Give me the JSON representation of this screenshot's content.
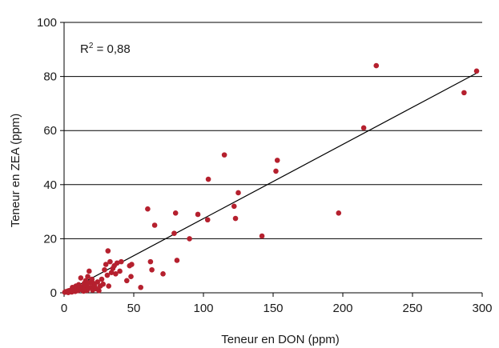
{
  "chart_data": {
    "type": "scatter",
    "title": "",
    "xlabel": "Teneur en DON (ppm)",
    "ylabel": "Teneur en ZEA (ppm)",
    "xlim": [
      0,
      300
    ],
    "ylim": [
      0,
      100
    ],
    "x_ticks": [
      "0",
      "50",
      "100",
      "150",
      "200",
      "250",
      "300"
    ],
    "y_ticks": [
      "0",
      "20",
      "40",
      "60",
      "80",
      "100"
    ],
    "grid": "horizontal",
    "annotation": {
      "r2_base": "R",
      "r2_sup": "2",
      "r2_rest": " = 0,88"
    },
    "colors": {
      "point": "#b5202e",
      "trendline": "#000000",
      "gridline": "#000000"
    },
    "trendline": {
      "x": [
        0,
        297
      ],
      "y": [
        0,
        81.5
      ]
    },
    "series": [
      {
        "values": [
          [
            0.5,
            0.2
          ],
          [
            1,
            0.4
          ],
          [
            2,
            0.3
          ],
          [
            2.5,
            0.6
          ],
          [
            3,
            0.1
          ],
          [
            3.5,
            0.8
          ],
          [
            4,
            0.5
          ],
          [
            5,
            1.0
          ],
          [
            5.5,
            0.3
          ],
          [
            6,
            2.0
          ],
          [
            6.5,
            0.7
          ],
          [
            7,
            1.3
          ],
          [
            8,
            0.5
          ],
          [
            8.5,
            2.5
          ],
          [
            9,
            1.0
          ],
          [
            10,
            0.8
          ],
          [
            10.5,
            3.0
          ],
          [
            11,
            1.8
          ],
          [
            12,
            5.5
          ],
          [
            12.5,
            1.2
          ],
          [
            13,
            2.2
          ],
          [
            14,
            0.6
          ],
          [
            14.5,
            3.5
          ],
          [
            15,
            1.5
          ],
          [
            15.5,
            4.5
          ],
          [
            16,
            2.8
          ],
          [
            16.5,
            0.9
          ],
          [
            17,
            6.0
          ],
          [
            17.5,
            1.8
          ],
          [
            18,
            8.0
          ],
          [
            18.5,
            3.8
          ],
          [
            19,
            2.0
          ],
          [
            20,
            5.0
          ],
          [
            20.5,
            1.0
          ],
          [
            21,
            3.5
          ],
          [
            22,
            2.5
          ],
          [
            23,
            1.5
          ],
          [
            24,
            4.0
          ],
          [
            25,
            0.8
          ],
          [
            26,
            2.5
          ],
          [
            27,
            5.0
          ],
          [
            28,
            3.2
          ],
          [
            29,
            8.5
          ],
          [
            30,
            10.5
          ],
          [
            31,
            6.5
          ],
          [
            31.5,
            15.5
          ],
          [
            32,
            2.5
          ],
          [
            33,
            11.5
          ],
          [
            34,
            7.5
          ],
          [
            35,
            9.0
          ],
          [
            36,
            10.0
          ],
          [
            37,
            7.0
          ],
          [
            38,
            11.0
          ],
          [
            40,
            8.0
          ],
          [
            41,
            11.5
          ],
          [
            45,
            4.5
          ],
          [
            47,
            10.0
          ],
          [
            48,
            6.0
          ],
          [
            48.5,
            10.5
          ],
          [
            55,
            2.0
          ],
          [
            60,
            31.0
          ],
          [
            62,
            11.5
          ],
          [
            63,
            8.5
          ],
          [
            65,
            25.0
          ],
          [
            71,
            7.0
          ],
          [
            79,
            22.0
          ],
          [
            80,
            29.5
          ],
          [
            81,
            12.0
          ],
          [
            90,
            20.0
          ],
          [
            96,
            29.0
          ],
          [
            103,
            27.0
          ],
          [
            103.5,
            42.0
          ],
          [
            115,
            51.0
          ],
          [
            122,
            32.0
          ],
          [
            123,
            27.5
          ],
          [
            125,
            37.0
          ],
          [
            142,
            21.0
          ],
          [
            152,
            45.0
          ],
          [
            153,
            49.0
          ],
          [
            197,
            29.5
          ],
          [
            215,
            61.0
          ],
          [
            224,
            84.0
          ],
          [
            287,
            74.0
          ],
          [
            296,
            82.0
          ]
        ]
      }
    ]
  }
}
